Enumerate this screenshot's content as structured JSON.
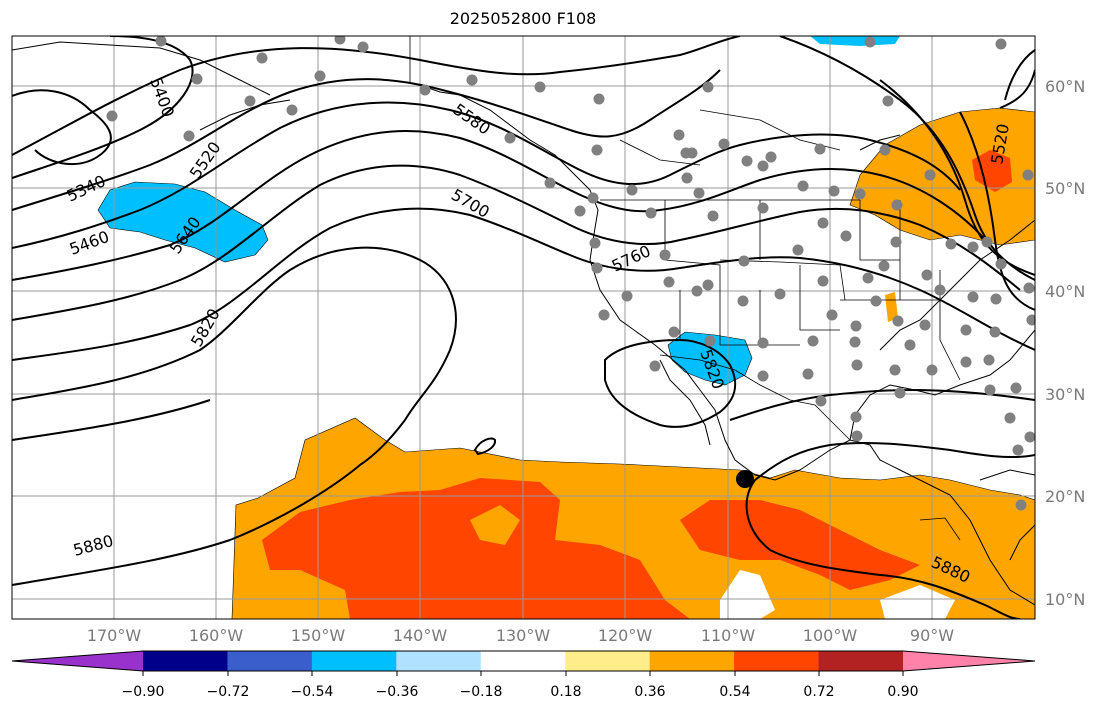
{
  "title": "2025052800 F108",
  "lat_labels": [
    "60°N",
    "50°N",
    "40°N",
    "30°N",
    "20°N",
    "10°N"
  ],
  "lon_labels": [
    "170°W",
    "160°W",
    "150°W",
    "140°W",
    "130°W",
    "120°W",
    "110°W",
    "100°W",
    "90°W"
  ],
  "contour_labels": [
    "5400",
    "5340",
    "5460",
    "5520",
    "5640",
    "5580",
    "5700",
    "5760",
    "5820",
    "5820",
    "5880",
    "5880",
    "5520"
  ],
  "colorbar": {
    "ticks": [
      "−0.90",
      "−0.72",
      "−0.54",
      "−0.36",
      "−0.18",
      "0.18",
      "0.36",
      "0.54",
      "0.72",
      "0.90"
    ],
    "colors": [
      "#9932cc",
      "#00008b",
      "#3a5fcd",
      "#00bfff",
      "#b0e2ff",
      "#ffffff",
      "#ffec8b",
      "#ffa500",
      "#ff4500",
      "#b22222",
      "#ff82ab"
    ]
  },
  "fill_colors": {
    "blue": "#00bfff",
    "orange": "#ffa500",
    "red_orange": "#ff4500"
  }
}
